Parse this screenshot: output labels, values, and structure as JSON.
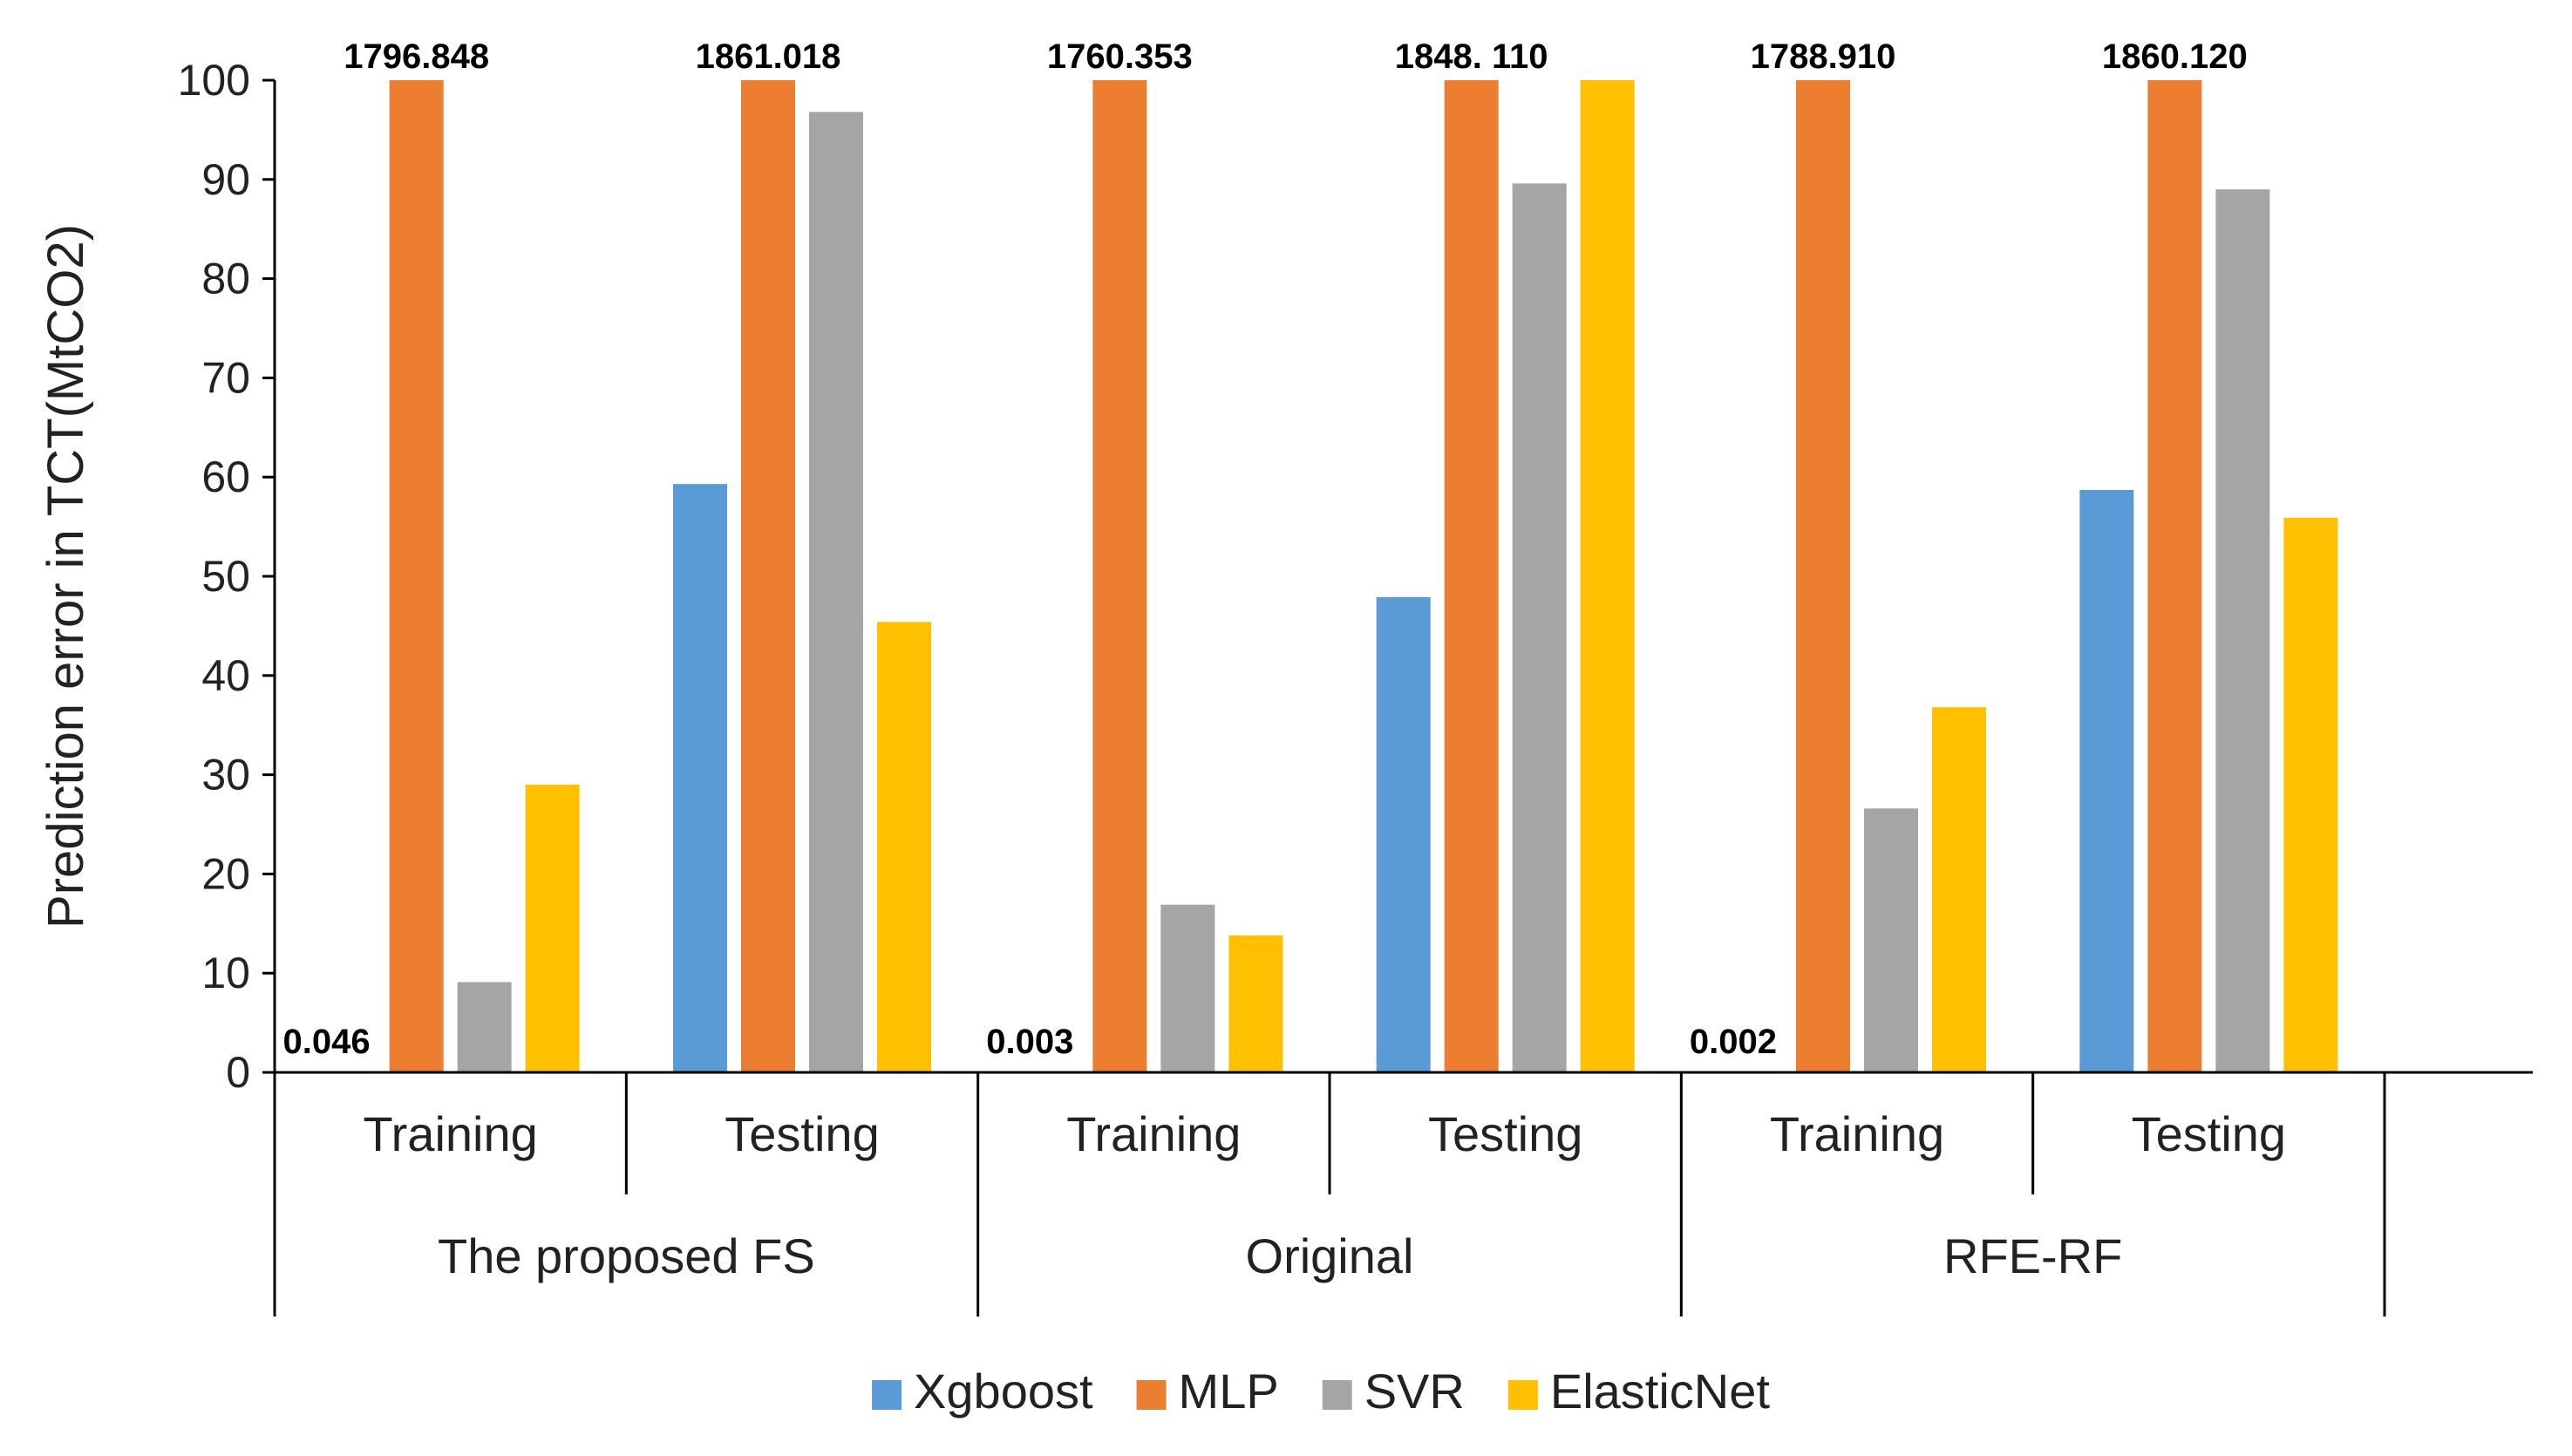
{
  "chart_data": {
    "type": "bar",
    "ylabel": "Prediction error in TCT(MtCO2)",
    "ylim": [
      0,
      100
    ],
    "yticks": [
      0,
      10,
      20,
      30,
      40,
      50,
      60,
      70,
      80,
      90,
      100
    ],
    "groups": [
      "The proposed FS",
      "Original",
      "RFE-RF"
    ],
    "subcategories": [
      "Training",
      "Testing"
    ],
    "categories": [
      "The proposed FS / Training",
      "The proposed FS / Testing",
      "Original / Training",
      "Original / Testing",
      "RFE-RF / Training",
      "RFE-RF / Testing"
    ],
    "series": [
      {
        "name": "Xgboost",
        "color": "#5b9bd5",
        "values": [
          0.046,
          59.3,
          0.003,
          47.9,
          0.002,
          58.7
        ]
      },
      {
        "name": "MLP",
        "color": "#ed7d31",
        "values": [
          1796.848,
          1861.018,
          1760.353,
          1848.11,
          1788.91,
          1860.12
        ]
      },
      {
        "name": "SVR",
        "color": "#a5a5a5",
        "values": [
          9.1,
          96.8,
          16.9,
          89.6,
          26.6,
          89.0
        ]
      },
      {
        "name": "ElasticNet",
        "color": "#ffc000",
        "values": [
          29.0,
          45.4,
          13.8,
          100,
          36.8,
          55.9
        ]
      }
    ],
    "data_labels": [
      {
        "series": "Xgboost",
        "category": 0,
        "text": "0.046"
      },
      {
        "series": "MLP",
        "category": 0,
        "text": "1796.848"
      },
      {
        "series": "MLP",
        "category": 1,
        "text": "1861.018"
      },
      {
        "series": "Xgboost",
        "category": 2,
        "text": "0.003"
      },
      {
        "series": "MLP",
        "category": 2,
        "text": "1760.353"
      },
      {
        "series": "MLP",
        "category": 3,
        "text": "1848. 110"
      },
      {
        "series": "Xgboost",
        "category": 4,
        "text": "0.002"
      },
      {
        "series": "MLP",
        "category": 4,
        "text": "1788.910"
      },
      {
        "series": "MLP",
        "category": 5,
        "text": "1860.120"
      }
    ],
    "legend_position": "bottom"
  }
}
